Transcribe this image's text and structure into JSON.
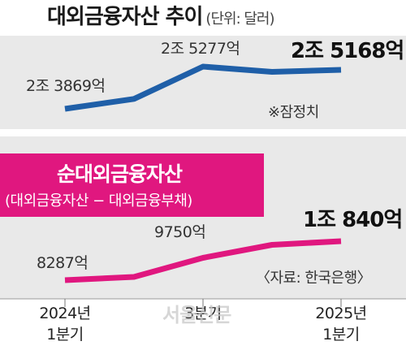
{
  "header": {
    "title": "대외금융자산 추이",
    "unit": "(단위: 달러)"
  },
  "notes": {
    "estimate": "※잠정치",
    "source": "〈자료: 한국은행〉",
    "watermark": "서울신문"
  },
  "chart_data": {
    "type": "line",
    "categories": [
      "2024년 1분기",
      "",
      "3분기",
      "",
      "2025년 1분기"
    ],
    "tick_labels": [
      {
        "top": "2024년",
        "bottom": "1분기"
      },
      {
        "top": "3분기",
        "bottom": ""
      },
      {
        "top": "2025년",
        "bottom": "1분기"
      }
    ],
    "series": [
      {
        "name": "대외금융자산",
        "color": "#1f5fa8",
        "values": [
          2.3869,
          2.42,
          2.5277,
          2.51,
          2.5168
        ],
        "value_labels": [
          "2조 3869억",
          "",
          "2조 5277억",
          "",
          "2조 5168억"
        ]
      },
      {
        "name": "순대외금융자산",
        "subtitle": "(대외금융자산 − 대외금융부채)",
        "color": "#e0177f",
        "values": [
          0.8287,
          0.85,
          0.975,
          1.06,
          1.084
        ],
        "value_labels": [
          "8287억",
          "",
          "9750억",
          "",
          "1조 840억"
        ]
      }
    ]
  }
}
